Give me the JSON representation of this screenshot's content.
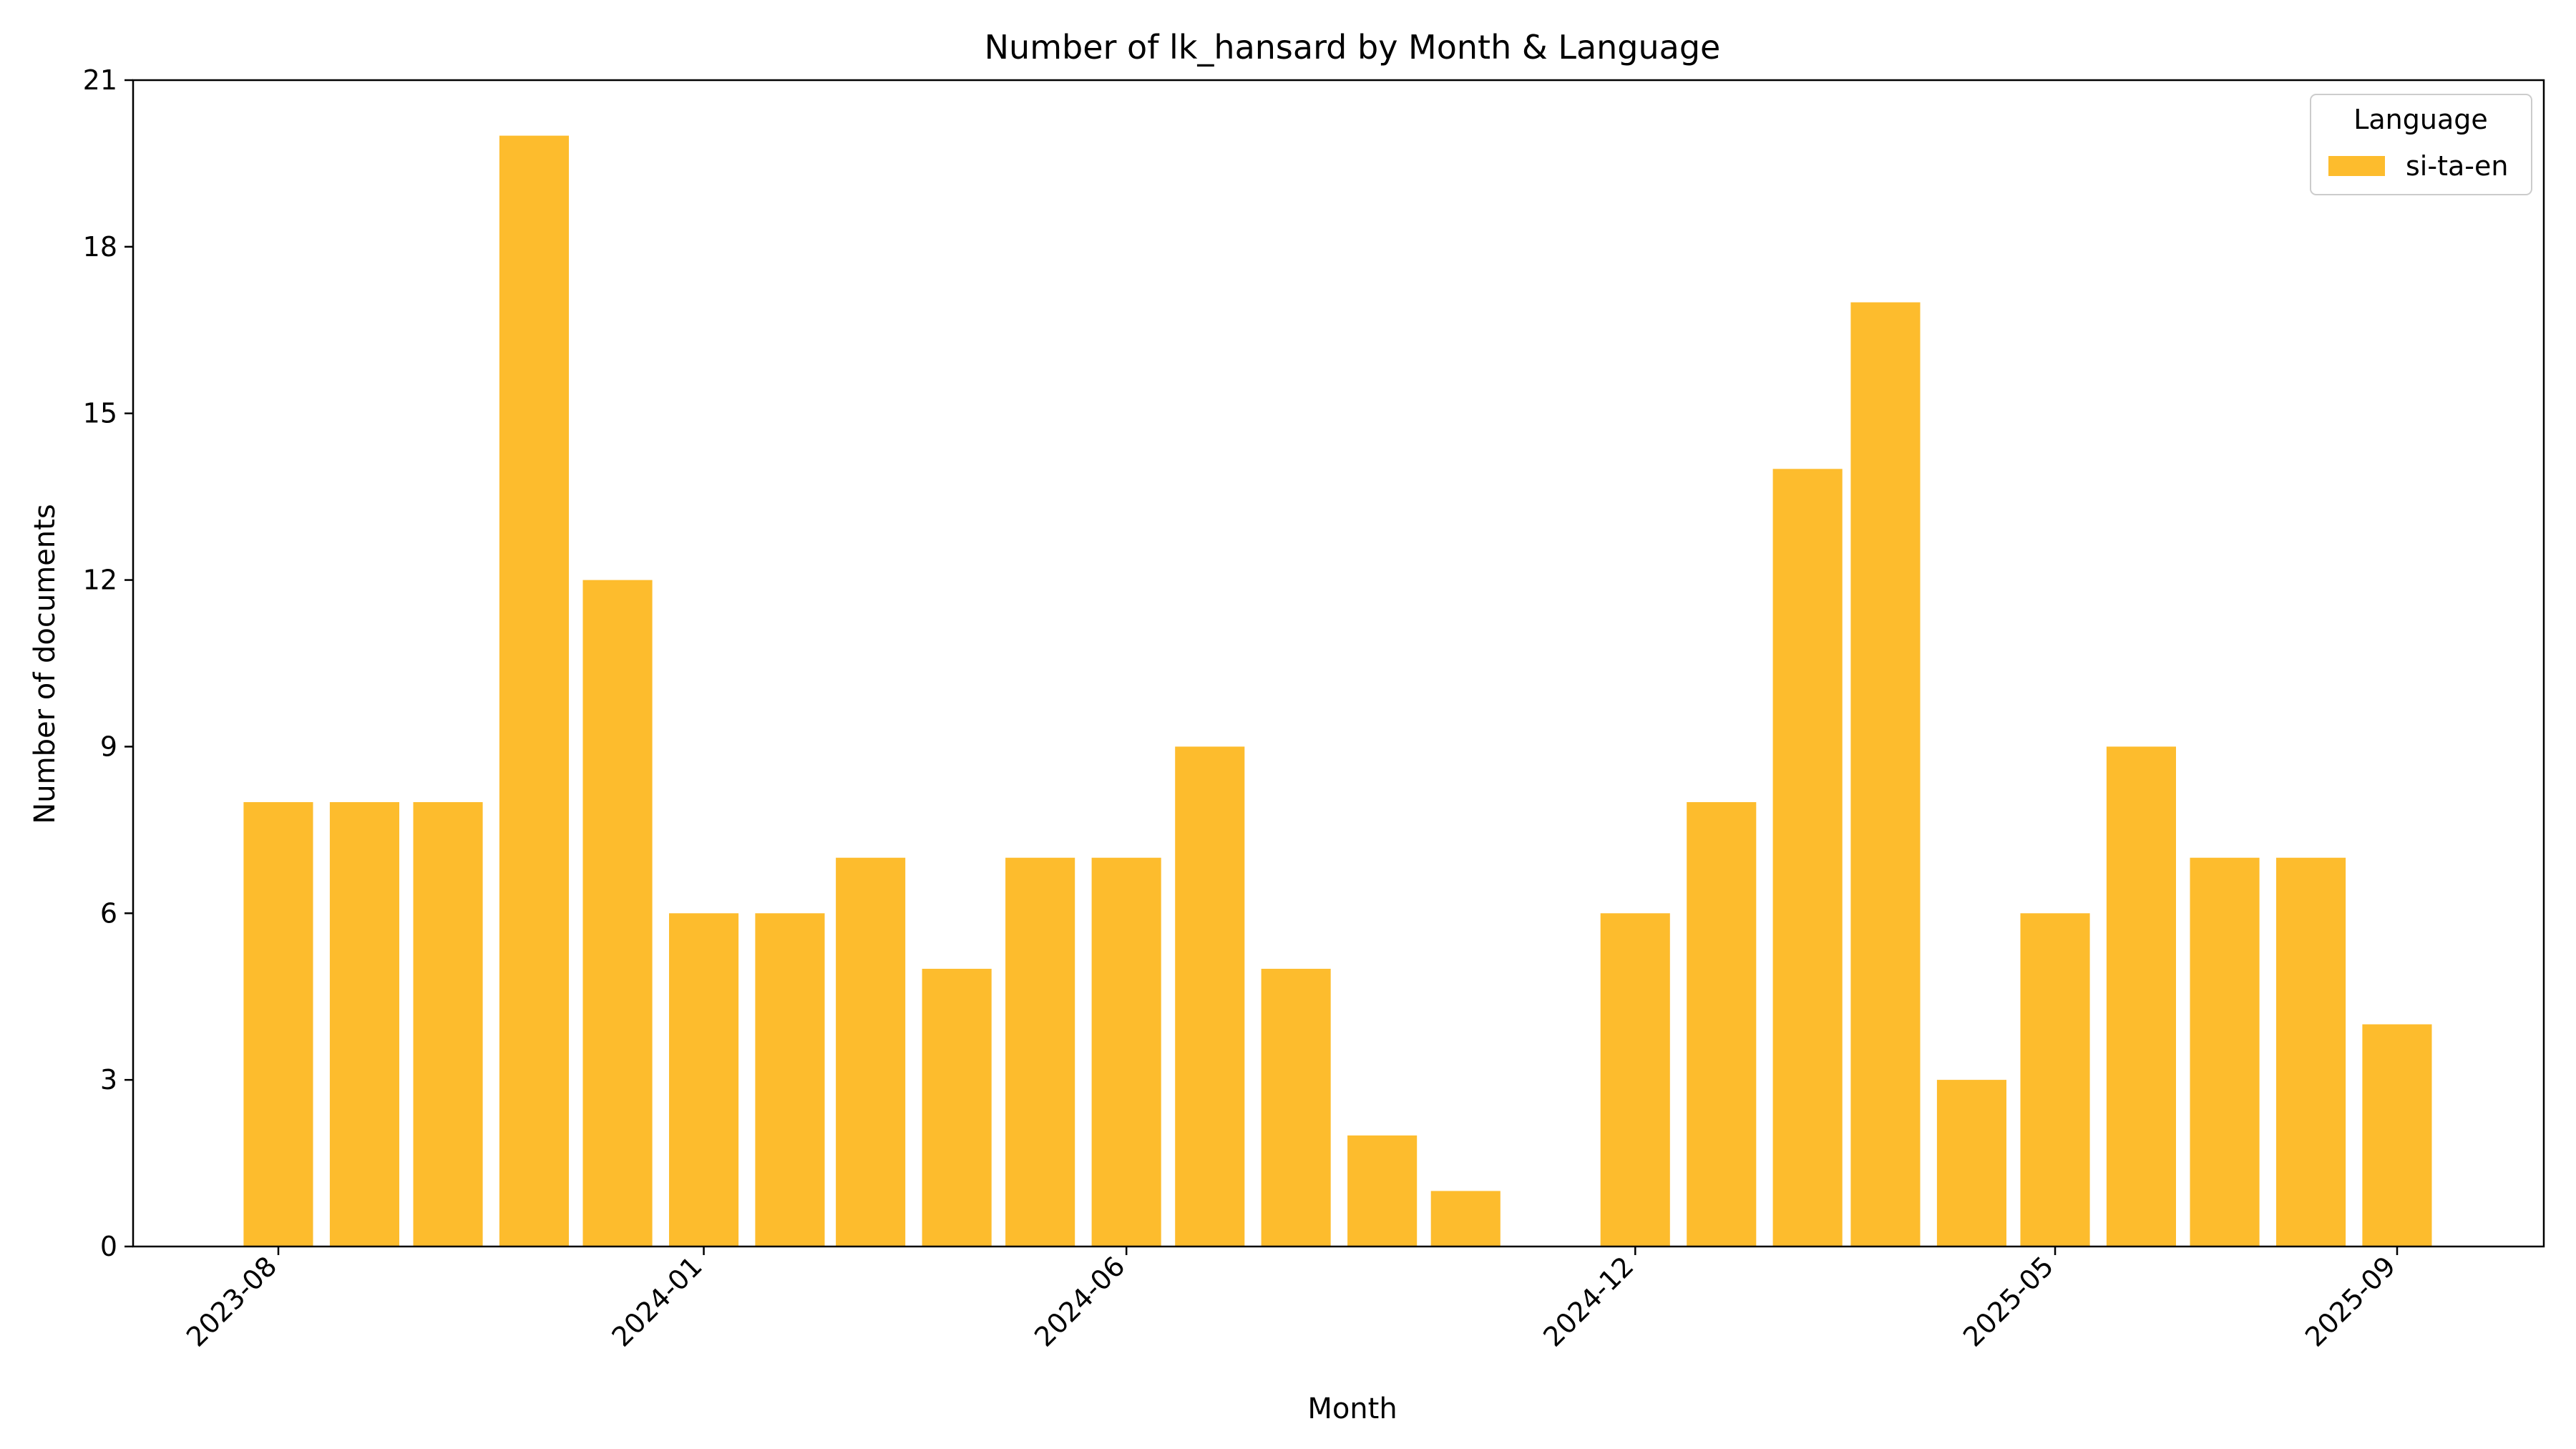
{
  "chart_data": {
    "type": "bar",
    "title": "Number of lk_hansard by Month & Language",
    "xlabel": "Month",
    "ylabel": "Number of documents",
    "ylim": [
      0,
      21
    ],
    "yticks": [
      "0",
      "3",
      "6",
      "9",
      "12",
      "15",
      "18",
      "21"
    ],
    "x": [
      "2023-08",
      "2023-09",
      "2023-10",
      "2023-11",
      "2023-12",
      "2024-01",
      "2024-02",
      "2024-03",
      "2024-04",
      "2024-05",
      "2024-06",
      "2024-07",
      "2024-08",
      "2024-09",
      "2024-10",
      "2024-12",
      "2025-01",
      "2025-02",
      "2025-03",
      "2025-04",
      "2025-05",
      "2025-06",
      "2025-07",
      "2025-08",
      "2025-09"
    ],
    "xticks": [
      "2023-08",
      "2024-01",
      "2024-06",
      "2024-12",
      "2025-05",
      "2025-09"
    ],
    "series": [
      {
        "name": "si-ta-en",
        "color": "#FDBC2D",
        "values": [
          8,
          8,
          8,
          20,
          12,
          6,
          6,
          7,
          5,
          7,
          7,
          9,
          5,
          2,
          1,
          6,
          8,
          14,
          17,
          3,
          6,
          9,
          7,
          7,
          4
        ]
      }
    ],
    "legend": {
      "title": "Language",
      "placement": "top-right"
    },
    "grid": false
  }
}
